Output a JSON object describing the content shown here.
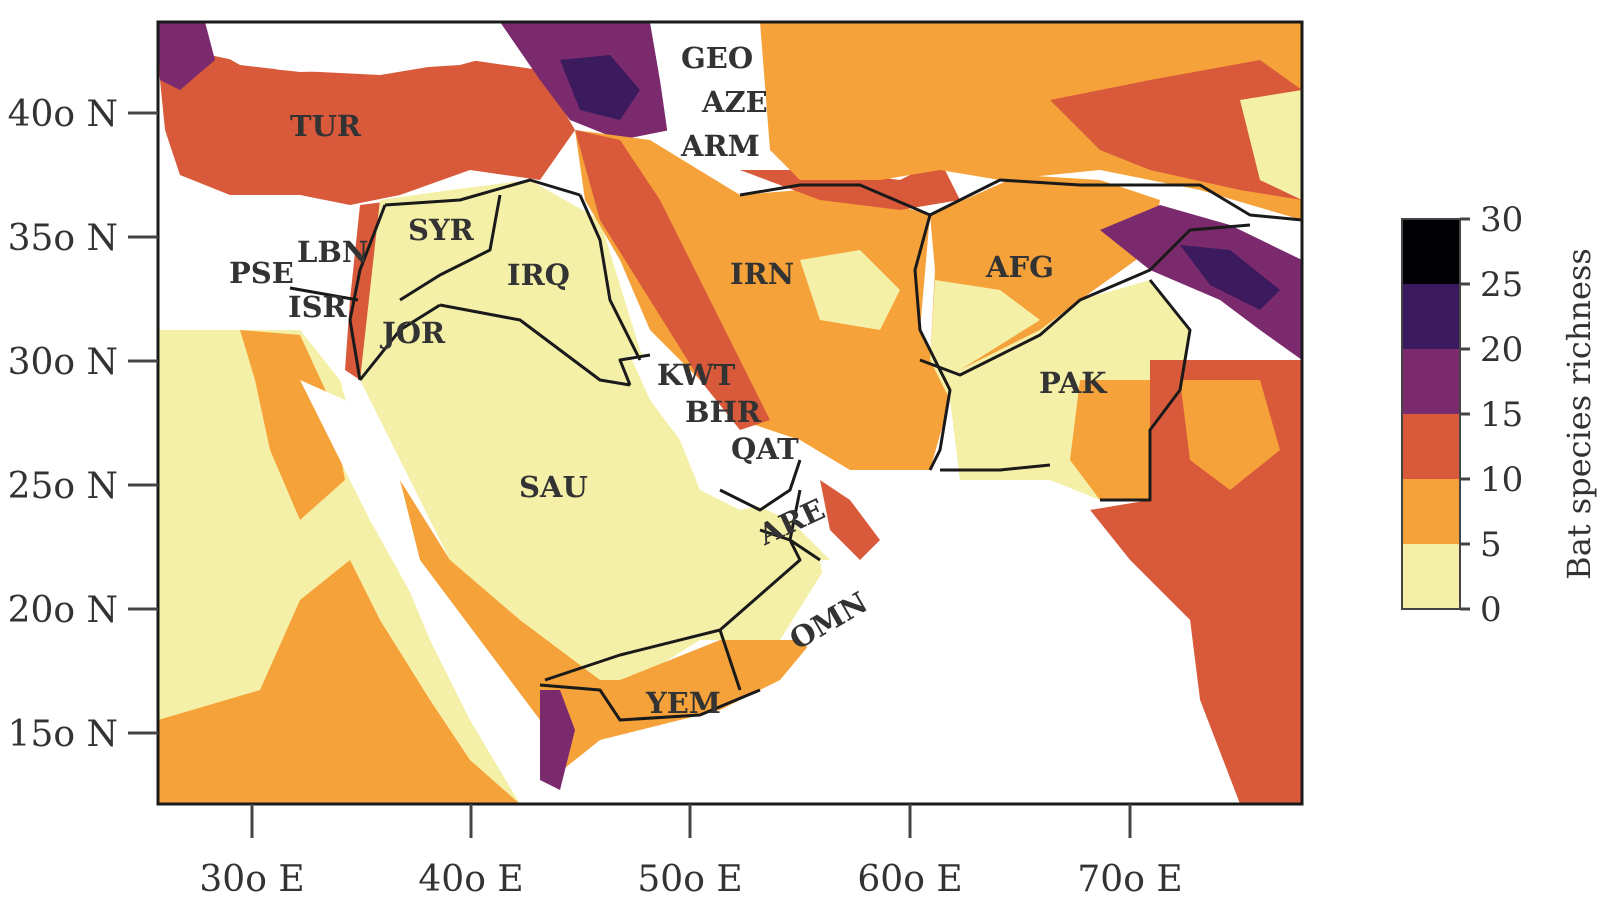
{
  "map": {
    "countries": [
      {
        "code": "TUR"
      },
      {
        "code": "GEO"
      },
      {
        "code": "AZE"
      },
      {
        "code": "ARM"
      },
      {
        "code": "SYR"
      },
      {
        "code": "LBN"
      },
      {
        "code": "PSE"
      },
      {
        "code": "ISR"
      },
      {
        "code": "JOR"
      },
      {
        "code": "IRQ"
      },
      {
        "code": "IRN"
      },
      {
        "code": "AFG"
      },
      {
        "code": "PAK"
      },
      {
        "code": "KWT"
      },
      {
        "code": "BHR"
      },
      {
        "code": "QAT"
      },
      {
        "code": "SAU"
      },
      {
        "code": "ARE"
      },
      {
        "code": "OMN"
      },
      {
        "code": "YEM"
      }
    ],
    "lat_ticks": [
      "40o N",
      "35o N",
      "30o N",
      "25o N",
      "20o N",
      "15o N"
    ],
    "lon_ticks": [
      "30o E",
      "40o E",
      "50o E",
      "60o E",
      "70o E"
    ],
    "lat_range": [
      12,
      43.5
    ],
    "lon_range": [
      25.7,
      78
    ]
  },
  "legend": {
    "title": "Bat species richness",
    "ticks": [
      "30",
      "25",
      "20",
      "15",
      "10",
      "5",
      "0"
    ],
    "colors": [
      "#000004",
      "#3b1a5e",
      "#7b2a6e",
      "#d85a3a",
      "#f6a23a",
      "#f5f0a8"
    ]
  }
}
